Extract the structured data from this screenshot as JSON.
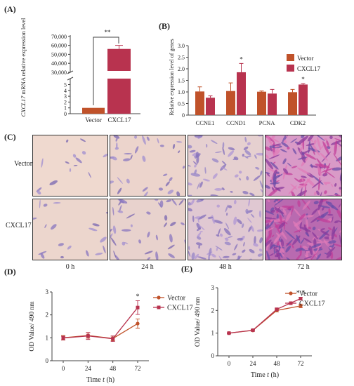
{
  "panels": {
    "A": "(A)",
    "B": "(B)",
    "C": "(C)",
    "D": "(D)",
    "E": "(E)"
  },
  "chart_data": [
    {
      "id": "A",
      "type": "bar",
      "categories": [
        "Vector",
        "CXCL17"
      ],
      "values": [
        1,
        56000
      ],
      "errors": [
        0,
        4000
      ],
      "ylabel": "CXCL17 mRNA relative expression level",
      "ylabel_italic_part": "CXCL17",
      "ylabel_rest": " mRNA relative expression level",
      "yticks_low": [
        "0",
        "1",
        "2",
        "3",
        "4",
        "5"
      ],
      "yticks_high": [
        "30,000",
        "40,000",
        "50,000",
        "60,000",
        "70,000"
      ],
      "significance": "**",
      "colors": {
        "Vector": "#c0522a",
        "CXCL17": "#b8334f"
      }
    },
    {
      "id": "B",
      "type": "bar",
      "categories": [
        "CCNE1",
        "CCND1",
        "PCNA",
        "CDK2"
      ],
      "series": [
        {
          "name": "Vector",
          "values": [
            1.02,
            1.04,
            1.01,
            0.99
          ],
          "errors": [
            0.2,
            0.35,
            0.03,
            0.12
          ]
        },
        {
          "name": "CXCL17",
          "values": [
            0.75,
            1.85,
            0.93,
            1.32
          ],
          "errors": [
            0.08,
            0.38,
            0.18,
            0.04
          ]
        }
      ],
      "ylabel": "Relative expression level of genes",
      "ylim": [
        0,
        3
      ],
      "yticks": [
        "0",
        "0.5",
        "1.0",
        "1.5",
        "2.0",
        "2.5",
        "3.0"
      ],
      "significance": [
        "",
        "*",
        "",
        "*"
      ],
      "colors": {
        "Vector": "#c0522a",
        "CXCL17": "#b8334f"
      }
    },
    {
      "id": "D",
      "type": "line",
      "x": [
        0,
        24,
        48,
        72
      ],
      "series": [
        {
          "name": "Vector",
          "values": [
            1.0,
            1.1,
            0.97,
            1.62
          ],
          "errors": [
            0.1,
            0.12,
            0.1,
            0.2
          ]
        },
        {
          "name": "CXCL17",
          "values": [
            0.99,
            1.08,
            0.96,
            2.32
          ],
          "errors": [
            0.08,
            0.15,
            0.12,
            0.3
          ]
        }
      ],
      "ylabel": "OD Value/ 490 nm",
      "xlabel_prefix": "Time ",
      "xlabel_var": "t",
      "xlabel_unit": " (h)",
      "ylim": [
        0,
        3
      ],
      "yticks": [
        "0",
        "1",
        "2",
        "3"
      ],
      "xticks": [
        "0",
        "24",
        "48",
        "72"
      ],
      "significance": "*",
      "colors": {
        "Vector": "#c0522a",
        "CXCL17": "#b8334f"
      }
    },
    {
      "id": "E",
      "type": "line",
      "x": [
        0,
        24,
        48,
        72
      ],
      "series": [
        {
          "name": "Vector",
          "values": [
            1.0,
            1.12,
            2.0,
            2.2
          ],
          "errors": [
            0.02,
            0.03,
            0.06,
            0.08
          ]
        },
        {
          "name": "CXCL17",
          "values": [
            1.0,
            1.13,
            2.05,
            2.52
          ],
          "errors": [
            0.02,
            0.03,
            0.05,
            0.06
          ]
        }
      ],
      "ylabel": "OD Value/ 490 nm",
      "xlabel_prefix": "Time ",
      "xlabel_var": "t",
      "xlabel_unit": " (h)",
      "ylim": [
        0,
        3
      ],
      "yticks": [
        "0",
        "1",
        "2",
        "3"
      ],
      "xticks": [
        "0",
        "24",
        "48",
        "72"
      ],
      "significance": "* *",
      "colors": {
        "Vector": "#c0522a",
        "CXCL17": "#b8334f"
      }
    }
  ],
  "micrographs": {
    "rows": [
      "Vector",
      "CXCL17"
    ],
    "cols": [
      "0 h",
      "24 h",
      "48 h",
      "72 h"
    ]
  }
}
